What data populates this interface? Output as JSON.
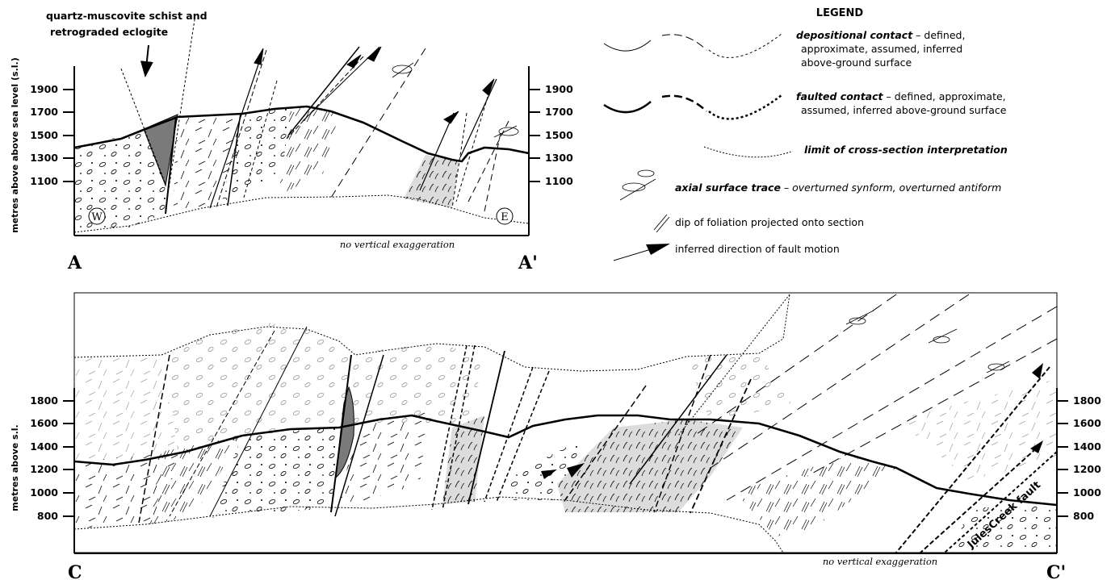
{
  "top_section": {
    "callout": [
      "quartz-muscovite schist and",
      "retrograded eclogite"
    ],
    "y_axis_label": "metres above above sea level (s.l.)",
    "left_ticks": [
      "1900",
      "1700",
      "1500",
      "1300",
      "1100"
    ],
    "right_ticks": [
      "1900",
      "1700",
      "1500",
      "1300",
      "1100"
    ],
    "left_end": "A",
    "right_end": "A'",
    "west_marker": "W",
    "east_marker": "E",
    "note": "no vertical exaggeration"
  },
  "bottom_section": {
    "y_axis_label": "metres above s.l.",
    "left_ticks": [
      "1800",
      "1600",
      "1400",
      "1200",
      "1000",
      "800"
    ],
    "right_ticks": [
      "1800",
      "1600",
      "1400",
      "1200",
      "1000",
      "800"
    ],
    "left_end": "C",
    "right_end": "C'",
    "fault_label": "JulesCreek fault",
    "note": "no vertical exaggeration"
  },
  "legend": {
    "title": "LEGEND",
    "items": [
      {
        "term": "depositional contact",
        "rest": [
          " – defined,",
          "approximate, assumed, inferred",
          "above-ground surface"
        ]
      },
      {
        "term": "faulted contact",
        "rest": [
          " – defined, approximate,",
          "assumed, inferred above-ground surface"
        ]
      },
      {
        "term": "limit of cross-section interpretation",
        "rest": []
      },
      {
        "term": "axial surface trace",
        "rest": [
          " – overturned synform, overturned antiform"
        ]
      },
      {
        "term": "",
        "rest": [
          "dip of foliation projected onto section"
        ]
      },
      {
        "term": "",
        "rest": [
          "inferred direction of fault motion"
        ]
      }
    ]
  },
  "colors": {
    "schist_fill": "#dcdcdc",
    "eclogite_fill": "#7a7a7a",
    "line": "#000000"
  }
}
